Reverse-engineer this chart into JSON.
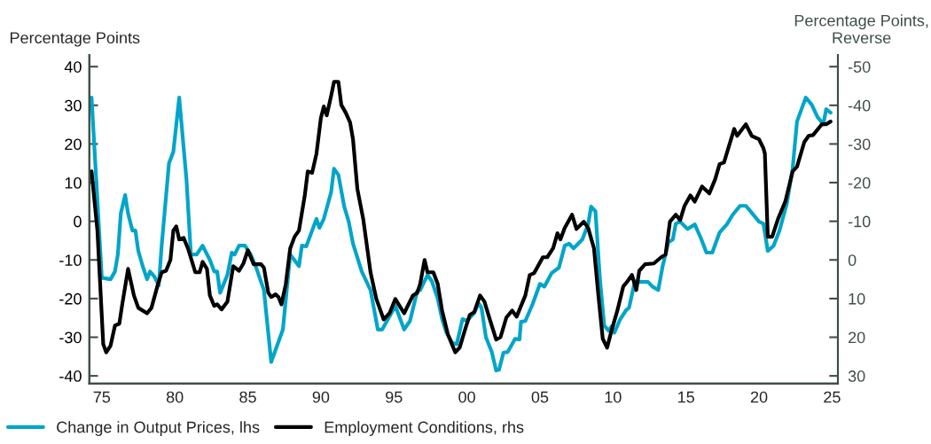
{
  "chart_data": {
    "type": "line",
    "ylabel": "Percentage Points",
    "y2label": "Percentage Points, Reverse",
    "xlim": [
      1974.15,
      2025.4
    ],
    "xticks": [
      {
        "value": 1975,
        "label": "75"
      },
      {
        "value": 1980,
        "label": "80"
      },
      {
        "value": 1985,
        "label": "85"
      },
      {
        "value": 1990,
        "label": "90"
      },
      {
        "value": 1995,
        "label": "95"
      },
      {
        "value": 2000,
        "label": "00"
      },
      {
        "value": 2005,
        "label": "05"
      },
      {
        "value": 2010,
        "label": "10"
      },
      {
        "value": 2015,
        "label": "15"
      },
      {
        "value": 2020,
        "label": "20"
      },
      {
        "value": 2025,
        "label": "25"
      }
    ],
    "ylim": [
      -42,
      43
    ],
    "yticks": [
      -40,
      -30,
      -20,
      -10,
      0,
      10,
      20,
      30,
      40
    ],
    "y2lim": [
      32,
      -53
    ],
    "y2ticks": [
      30,
      20,
      10,
      0,
      -10,
      -20,
      -30,
      -40,
      -50
    ],
    "grid": false,
    "legend": "bottom",
    "marker": "none",
    "line_style": "solid",
    "series": [
      {
        "name": "Change in Output Prices, lhs",
        "color": "#00a5c9",
        "x": [
          1974.3,
          1975.0,
          1975.6,
          1975.9,
          1976.1,
          1976.3,
          1976.6,
          1976.8,
          1977.1,
          1977.3,
          1977.5,
          1977.8,
          1978.1,
          1978.3,
          1978.6,
          1978.9,
          1979.1,
          1979.6,
          1979.9,
          1980.3,
          1980.8,
          1981.1,
          1981.5,
          1981.9,
          1982.4,
          1982.7,
          1982.9,
          1983.1,
          1983.6,
          1983.9,
          1984.1,
          1984.4,
          1984.8,
          1985.2,
          1985.6,
          1986.1,
          1986.6,
          1987.4,
          1987.9,
          1988.5,
          1988.7,
          1989.0,
          1989.4,
          1989.7,
          1989.9,
          1990.2,
          1990.7,
          1990.9,
          1991.2,
          1991.6,
          1991.9,
          1992.2,
          1992.8,
          1993.4,
          1993.9,
          1994.2,
          1994.6,
          1995.1,
          1995.7,
          1996.1,
          1996.6,
          1996.8,
          1997.3,
          1997.6,
          1998.0,
          1998.3,
          1998.6,
          1999.0,
          1999.3,
          1999.7,
          2000.0,
          2000.5,
          2000.8,
          2001.0,
          2001.3,
          2001.7,
          2002.0,
          2002.2,
          2002.5,
          2002.8,
          2003.3,
          2003.6,
          2003.7,
          2004.0,
          2004.5,
          2005.0,
          2005.3,
          2005.8,
          2006.3,
          2006.7,
          2007.0,
          2007.3,
          2007.9,
          2008.3,
          2008.5,
          2008.8,
          2009.1,
          2009.4,
          2009.7,
          2009.9,
          2010.1,
          2010.5,
          2010.9,
          2011.1,
          2011.5,
          2011.9,
          2012.4,
          2012.7,
          2013.1,
          2013.4,
          2013.8,
          2014.1,
          2014.3,
          2014.6,
          2015.1,
          2015.6,
          2016.0,
          2016.4,
          2016.8,
          2017.3,
          2017.8,
          2018.2,
          2018.7,
          2019.1,
          2019.5,
          2020.0,
          2020.3,
          2020.6,
          2021.0,
          2021.4,
          2021.9,
          2022.3,
          2022.6,
          2023.2,
          2023.6,
          2024.0,
          2024.4,
          2024.6,
          2024.9
        ],
        "values": [
          32,
          -14.6,
          -15,
          -13,
          -8.6,
          2,
          6.8,
          2,
          -2.4,
          -2.4,
          -7.7,
          -11.6,
          -15,
          -13,
          -14.3,
          -16.6,
          -6.3,
          15,
          18,
          32,
          10.7,
          -8.6,
          -8.6,
          -6.3,
          -10,
          -13,
          -13,
          -18.5,
          -13.9,
          -8.1,
          -8.6,
          -6.3,
          -6.3,
          -8.6,
          -12.3,
          -17.8,
          -36.4,
          -28,
          -8.6,
          -11.6,
          -6.3,
          -6.5,
          -2.4,
          0.6,
          -1.7,
          0.6,
          7.5,
          13.6,
          12,
          3.8,
          0,
          -5.8,
          -13,
          -17.8,
          -28,
          -28,
          -25.3,
          -21.9,
          -28,
          -25.8,
          -18,
          -17.8,
          -13.9,
          -15.5,
          -20,
          -25.3,
          -28.8,
          -31.5,
          -31.8,
          -25.3,
          -25.8,
          -23.7,
          -21.2,
          -22.4,
          -30,
          -33.8,
          -38.6,
          -38.4,
          -34,
          -33.8,
          -30.4,
          -30.6,
          -26,
          -25.8,
          -21.4,
          -16.2,
          -16.9,
          -13.4,
          -12,
          -6.3,
          -5.8,
          -7,
          -4.7,
          -0.8,
          3.8,
          2.6,
          -14.6,
          -27,
          -28.3,
          -27.2,
          -28.8,
          -25.3,
          -23,
          -22.4,
          -15.5,
          -15.7,
          -15.7,
          -16.9,
          -17.8,
          -11.6,
          -5.4,
          -4.7,
          -0.6,
          -0.1,
          -2,
          -0.8,
          -4.2,
          -8.1,
          -8.1,
          -2.9,
          -0.8,
          1.7,
          4,
          4,
          2.2,
          -0.1,
          -0.6,
          -7.7,
          -6.3,
          -2.4,
          4.5,
          13.6,
          25.8,
          32,
          30.2,
          27,
          25.1,
          29,
          28.1
        ]
      },
      {
        "name": "Employment Conditions, rhs",
        "color": "#000000",
        "axis": "y2",
        "x": [
          1974.3,
          1974.7,
          1975.1,
          1975.3,
          1975.6,
          1975.9,
          1976.2,
          1976.4,
          1976.8,
          1977.2,
          1977.5,
          1978.1,
          1978.4,
          1978.8,
          1979.1,
          1979.4,
          1979.7,
          1979.9,
          1980.1,
          1980.3,
          1980.6,
          1980.9,
          1981.4,
          1981.7,
          1981.9,
          1982.2,
          1982.4,
          1982.7,
          1982.9,
          1983.2,
          1983.6,
          1984.0,
          1984.4,
          1984.7,
          1985.0,
          1985.4,
          1985.9,
          1986.1,
          1986.4,
          1986.6,
          1986.9,
          1987.1,
          1987.3,
          1987.6,
          1987.9,
          1988.2,
          1988.5,
          1988.9,
          1989.1,
          1989.4,
          1989.7,
          1990.0,
          1990.2,
          1990.4,
          1990.7,
          1990.9,
          1991.2,
          1991.4,
          1991.7,
          1992.0,
          1992.2,
          1992.5,
          1992.9,
          1993.4,
          1993.8,
          1994.3,
          1994.7,
          1995.1,
          1995.7,
          1996.3,
          1996.6,
          1996.8,
          1997.1,
          1997.3,
          1997.7,
          1998.0,
          1998.3,
          1998.7,
          1999.2,
          1999.5,
          1999.9,
          2000.2,
          2000.5,
          2000.9,
          2001.2,
          2001.6,
          2002.0,
          2002.3,
          2002.7,
          2003.1,
          2003.4,
          2004.0,
          2004.3,
          2004.6,
          2005.2,
          2005.5,
          2005.9,
          2006.2,
          2006.4,
          2006.7,
          2007.2,
          2007.5,
          2008.0,
          2008.3,
          2008.7,
          2009.0,
          2009.3,
          2009.6,
          2009.9,
          2010.3,
          2010.7,
          2011.0,
          2011.3,
          2011.6,
          2011.8,
          2012.2,
          2012.8,
          2013.3,
          2013.6,
          2013.9,
          2014.3,
          2014.6,
          2014.9,
          2015.3,
          2015.6,
          2016.1,
          2016.6,
          2017.0,
          2017.3,
          2017.6,
          2018.3,
          2018.5,
          2019.1,
          2019.5,
          2020.0,
          2020.3,
          2020.4,
          2020.6,
          2020.9,
          2021.3,
          2021.8,
          2022.3,
          2022.6,
          2023.1,
          2023.4,
          2023.7,
          2024.3,
          2024.6,
          2024.9
        ],
        "values": [
          -22.9,
          -7.6,
          21.8,
          23.9,
          22.2,
          17,
          16.5,
          11.5,
          2.3,
          9.2,
          12.4,
          13.8,
          12.4,
          6.9,
          3.2,
          2.8,
          0,
          -7.6,
          -8.7,
          -5.3,
          -5.7,
          -3,
          3.2,
          3.2,
          0.5,
          2.3,
          9.2,
          11.9,
          11.5,
          12.8,
          10.8,
          1.6,
          2.8,
          0.9,
          -2.5,
          1.1,
          1.1,
          2,
          8.5,
          9.6,
          8.9,
          9.6,
          11.5,
          6.2,
          -3,
          -6,
          -7.6,
          -16.7,
          -22.9,
          -22.5,
          -27.5,
          -36.7,
          -39.7,
          -37.4,
          -42.4,
          -46.1,
          -46.1,
          -40.1,
          -38.1,
          -35.6,
          -31.2,
          -18.3,
          -10.6,
          3.2,
          10.1,
          15.4,
          13.8,
          10.1,
          13.8,
          9.2,
          8.5,
          6.2,
          0,
          3.2,
          3.2,
          6.2,
          13.1,
          19.3,
          23.9,
          22.7,
          17.7,
          14.2,
          13.5,
          9.2,
          10.8,
          15.8,
          20.6,
          20,
          14.9,
          13.1,
          14.7,
          9.2,
          3.9,
          3.4,
          -0.7,
          -0.7,
          -3,
          -6.9,
          -5.3,
          -8.3,
          -11.7,
          -8,
          -9.9,
          -8.3,
          -3,
          9.2,
          20.4,
          22.7,
          18.3,
          13.1,
          6.9,
          5.5,
          3.9,
          7.8,
          2.8,
          1.1,
          0.9,
          -0.7,
          -1.4,
          -9.9,
          -11.7,
          -10.3,
          -14,
          -16.7,
          -15.1,
          -19,
          -17.2,
          -20.9,
          -24.8,
          -25.2,
          -33.9,
          -32.1,
          -35.1,
          -32.1,
          -31.2,
          -28.9,
          -27.5,
          -6,
          -6,
          -10.6,
          -15.1,
          -22.9,
          -24.1,
          -30.5,
          -32.1,
          -32.3,
          -35.1,
          -35.1,
          -35.8
        ]
      }
    ]
  }
}
